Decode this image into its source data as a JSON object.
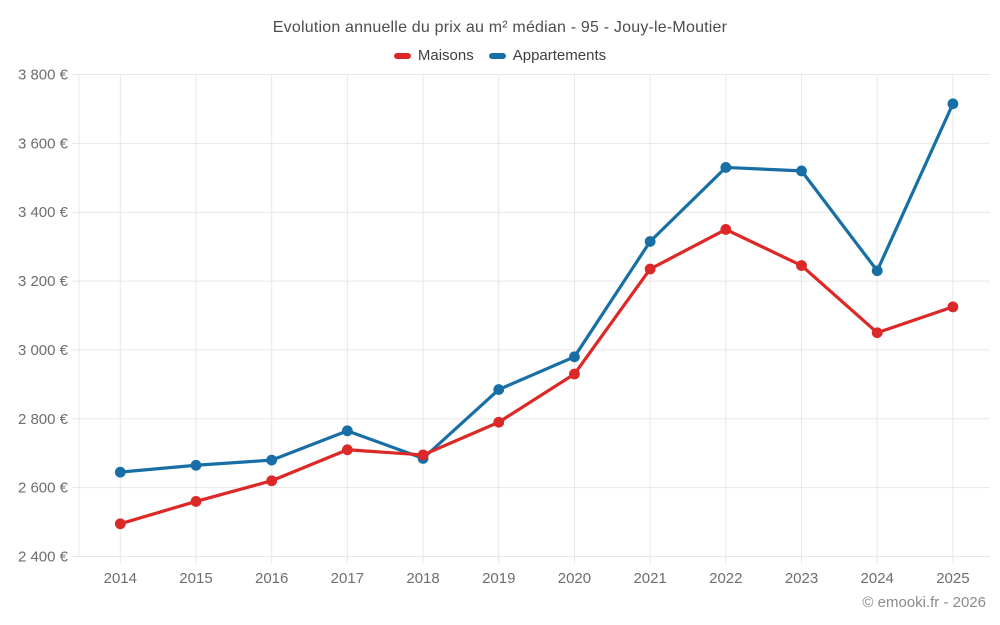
{
  "title": "Evolution annuelle du prix au m² médian - 95 - Jouy-le-Moutier",
  "footer": "© emooki.fr - 2026",
  "legend": [
    {
      "label": "Maisons",
      "color": "#dc2826"
    },
    {
      "label": "Appartements",
      "color": "#176fa5"
    }
  ],
  "colors": {
    "grid": "#e7e7e7",
    "axis_text": "#6e6e6e",
    "title_text": "#4d4d4d",
    "maisons": "#dc2826",
    "appartements": "#176fa5"
  },
  "chart_data": {
    "type": "line",
    "title": "Evolution annuelle du prix au m² médian - 95 - Jouy-le-Moutier",
    "categories": [
      "2014",
      "2015",
      "2016",
      "2017",
      "2018",
      "2019",
      "2020",
      "2021",
      "2022",
      "2023",
      "2024",
      "2025"
    ],
    "series": [
      {
        "name": "Maisons",
        "color": "#dc2826",
        "values": [
          2495,
          2560,
          2620,
          2710,
          2695,
          2790,
          2930,
          3235,
          3350,
          3245,
          3050,
          3125
        ]
      },
      {
        "name": "Appartements",
        "color": "#176fa5",
        "values": [
          2645,
          2665,
          2680,
          2765,
          2685,
          2885,
          2980,
          3315,
          3530,
          3520,
          3230,
          3715
        ]
      }
    ],
    "xlabel": "",
    "ylabel": "",
    "ylim": [
      2400,
      3800
    ],
    "ytick_step": 200,
    "ytick_suffix": " €",
    "grid": true,
    "legend_position": "top",
    "marker": "circle"
  }
}
